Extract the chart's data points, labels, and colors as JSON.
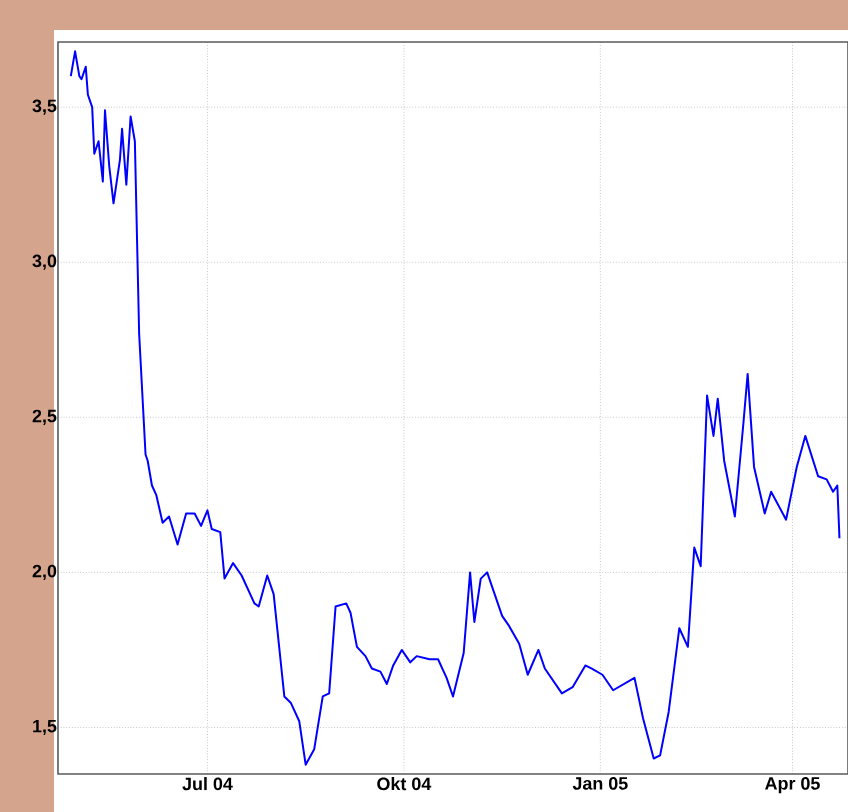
{
  "chart_data": {
    "type": "line",
    "color": "#0000ff",
    "grid": true,
    "x": [
      "2004-04-28",
      "2004-04-30",
      "2004-05-02",
      "2004-05-03",
      "2004-05-05",
      "2004-05-06",
      "2004-05-08",
      "2004-05-09",
      "2004-05-11",
      "2004-05-13",
      "2004-05-14",
      "2004-05-16",
      "2004-05-18",
      "2004-05-21",
      "2004-05-22",
      "2004-05-24",
      "2004-05-26",
      "2004-05-28",
      "2004-05-30",
      "2004-06-02",
      "2004-06-03",
      "2004-06-05",
      "2004-06-07",
      "2004-06-10",
      "2004-06-13",
      "2004-06-17",
      "2004-06-21",
      "2004-06-25",
      "2004-06-28",
      "2004-07-01",
      "2004-07-03",
      "2004-07-07",
      "2004-07-09",
      "2004-07-13",
      "2004-07-17",
      "2004-07-23",
      "2004-07-25",
      "2004-07-29",
      "2004-08-01",
      "2004-08-06",
      "2004-08-09",
      "2004-08-13",
      "2004-08-16",
      "2004-08-20",
      "2004-08-24",
      "2004-08-27",
      "2004-08-30",
      "2004-09-04",
      "2004-09-06",
      "2004-09-09",
      "2004-09-13",
      "2004-09-16",
      "2004-09-20",
      "2004-09-23",
      "2004-09-26",
      "2004-09-30",
      "2004-10-04",
      "2004-10-07",
      "2004-10-13",
      "2004-10-17",
      "2004-10-21",
      "2004-10-24",
      "2004-10-29",
      "2004-11-01",
      "2004-11-03",
      "2004-11-06",
      "2004-11-09",
      "2004-11-16",
      "2004-11-19",
      "2004-11-24",
      "2004-11-28",
      "2004-12-03",
      "2004-12-06",
      "2004-12-14",
      "2004-12-19",
      "2004-12-25",
      "2004-12-28",
      "2005-01-02",
      "2005-01-07",
      "2005-01-17",
      "2005-01-21",
      "2005-01-26",
      "2005-01-29",
      "2005-02-02",
      "2005-02-07",
      "2005-02-11",
      "2005-02-14",
      "2005-02-17",
      "2005-02-20",
      "2005-02-23",
      "2005-02-25",
      "2005-02-28",
      "2005-03-05",
      "2005-03-09",
      "2005-03-11",
      "2005-03-14",
      "2005-03-19",
      "2005-03-22",
      "2005-03-29",
      "2005-04-03",
      "2005-04-07",
      "2005-04-13",
      "2005-04-17",
      "2005-04-20",
      "2005-04-22",
      "2005-04-23"
    ],
    "values": [
      3.6,
      3.68,
      3.6,
      3.59,
      3.63,
      3.54,
      3.5,
      3.35,
      3.39,
      3.26,
      3.49,
      3.31,
      3.19,
      3.33,
      3.43,
      3.25,
      3.47,
      3.39,
      2.77,
      2.38,
      2.36,
      2.28,
      2.25,
      2.16,
      2.18,
      2.09,
      2.19,
      2.19,
      2.15,
      2.2,
      2.14,
      2.13,
      1.98,
      2.03,
      1.99,
      1.9,
      1.89,
      1.99,
      1.93,
      1.6,
      1.58,
      1.52,
      1.38,
      1.43,
      1.6,
      1.61,
      1.89,
      1.9,
      1.87,
      1.76,
      1.73,
      1.69,
      1.68,
      1.64,
      1.7,
      1.75,
      1.71,
      1.73,
      1.72,
      1.72,
      1.66,
      1.6,
      1.74,
      2.0,
      1.84,
      1.98,
      2.0,
      1.86,
      1.83,
      1.77,
      1.67,
      1.75,
      1.69,
      1.61,
      1.63,
      1.7,
      1.69,
      1.67,
      1.62,
      1.66,
      1.53,
      1.4,
      1.41,
      1.55,
      1.82,
      1.76,
      2.08,
      2.02,
      2.57,
      2.44,
      2.56,
      2.36,
      2.18,
      2.48,
      2.64,
      2.34,
      2.19,
      2.26,
      2.17,
      2.34,
      2.44,
      2.31,
      2.3,
      2.26,
      2.28,
      2.11
    ],
    "xlim": [
      "2004-04-22",
      "2005-04-27"
    ],
    "xticks": [
      {
        "value": "2004-07-01",
        "label": "Jul 04"
      },
      {
        "value": "2004-10-01",
        "label": "Okt 04"
      },
      {
        "value": "2005-01-01",
        "label": "Jan 05"
      },
      {
        "value": "2005-04-01",
        "label": "Apr 05"
      }
    ],
    "ylim": [
      1.35,
      3.71
    ],
    "yticks": [
      {
        "value": 1.5,
        "label": "1,5"
      },
      {
        "value": 2.0,
        "label": "2,0"
      },
      {
        "value": 2.5,
        "label": "2,5"
      },
      {
        "value": 3.0,
        "label": "3,0"
      },
      {
        "value": 3.5,
        "label": "3,5"
      }
    ]
  }
}
